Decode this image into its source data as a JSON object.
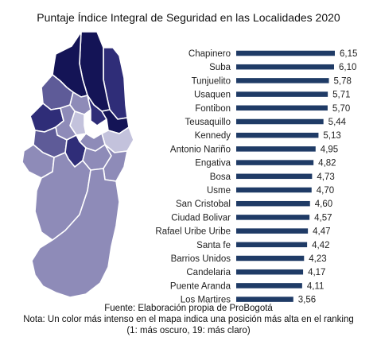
{
  "chart_data": {
    "type": "bar",
    "orientation": "horizontal",
    "title": "Puntaje Índice Integral de Seguridad en las Localidades 2020",
    "categories": [
      "Chapinero",
      "Suba",
      "Tunjuelito",
      "Usaquen",
      "Fontibon",
      "Teusaquillo",
      "Kennedy",
      "Antonio Nariño",
      "Engativa",
      "Bosa",
      "Usme",
      "San Cristobal",
      "Ciudad Bolivar",
      "Rafael Uribe Uribe",
      "Santa fe",
      "Barrios Unidos",
      "Candelaria",
      "Puente Aranda",
      "Los Martires"
    ],
    "values": [
      6.15,
      6.1,
      5.78,
      5.71,
      5.7,
      5.44,
      5.13,
      4.95,
      4.82,
      4.73,
      4.7,
      4.6,
      4.57,
      4.47,
      4.42,
      4.23,
      4.17,
      4.11,
      3.56
    ],
    "value_labels": [
      "6,15",
      "6,10",
      "5,78",
      "5,71",
      "5,70",
      "5,44",
      "5,13",
      "4,95",
      "4,82",
      "4,73",
      "4,70",
      "4,60",
      "4,57",
      "4,47",
      "4,42",
      "4,23",
      "4,17",
      "4,11",
      "3,56"
    ],
    "xlim": [
      0,
      6.15
    ],
    "bar_color": "#1f3b66",
    "grid": false,
    "legend": "none"
  },
  "map_colors": {
    "darkest": "#141456",
    "dark": "#2f2d78",
    "medium": "#5e5b98",
    "light": "#8e8bb8",
    "lightest": "#c3c2dc",
    "white": "#ffffff",
    "border": "#ffffff"
  },
  "footer": {
    "source": "Fuente: Elaboración propia de ProBogotá",
    "note": "Nota: Un color más intenso en el mapa indica una posición más alta en el ranking (1: más oscuro, 19: más claro)"
  }
}
